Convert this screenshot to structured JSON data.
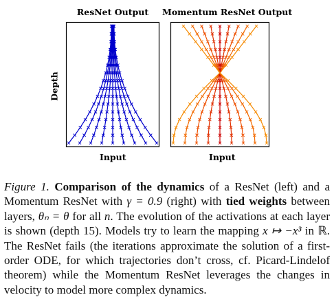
{
  "figure": {
    "left_panel": {
      "title": "ResNet Output",
      "xlabel": "Input"
    },
    "right_panel": {
      "title": "Momentum ResNet Output",
      "xlabel": "Input"
    },
    "ylabel": "Depth",
    "colors": {
      "resnet": "#0000cc",
      "momentum_gradient": [
        "#cc0000",
        "#e03000",
        "#ee5000",
        "#f26a00",
        "#f58a00"
      ]
    }
  },
  "chart_data": [
    {
      "type": "line",
      "title": "ResNet Output",
      "xlabel": "Input",
      "ylabel": "Depth",
      "layers": 15,
      "inputs": [
        -2.0,
        -1.5,
        -1.0,
        -0.5,
        0.0,
        0.5,
        1.0,
        1.5,
        2.0
      ],
      "behavior": "trajectories contract toward 0 without crossing"
    },
    {
      "type": "line",
      "title": "Momentum ResNet Output",
      "xlabel": "Input",
      "ylabel": "",
      "layers": 15,
      "inputs": [
        -2.0,
        -1.5,
        -1.0,
        -0.5,
        0.0,
        0.5,
        1.0,
        1.5,
        2.0
      ],
      "behavior": "trajectories cross near the top, mapping x to -x^3"
    }
  ],
  "caption": {
    "label": "Figure 1.",
    "title": "Comparison of the dynamics",
    "part1": " of a ResNet (left) and a Momentum ResNet with ",
    "gamma_eq": "γ = 0.9",
    "part2": " (right) with ",
    "bold2": "tied weights",
    "part3": " between layers, ",
    "theta_eq": "θₙ = θ",
    "part4": " for all ",
    "n": "n",
    "part5": ". The evolution of the activations at each layer is shown (depth 15). Models try to learn the mapping ",
    "mapping": "x ↦ −x³",
    "part6": " in ℝ. The ResNet fails (the iterations approximate the solution of a first-order ODE, for which trajectories don’t cross, cf. Picard-Lindelof theorem) while the Momentum ResNet leverages the changes in velocity to model more complex dynamics."
  }
}
